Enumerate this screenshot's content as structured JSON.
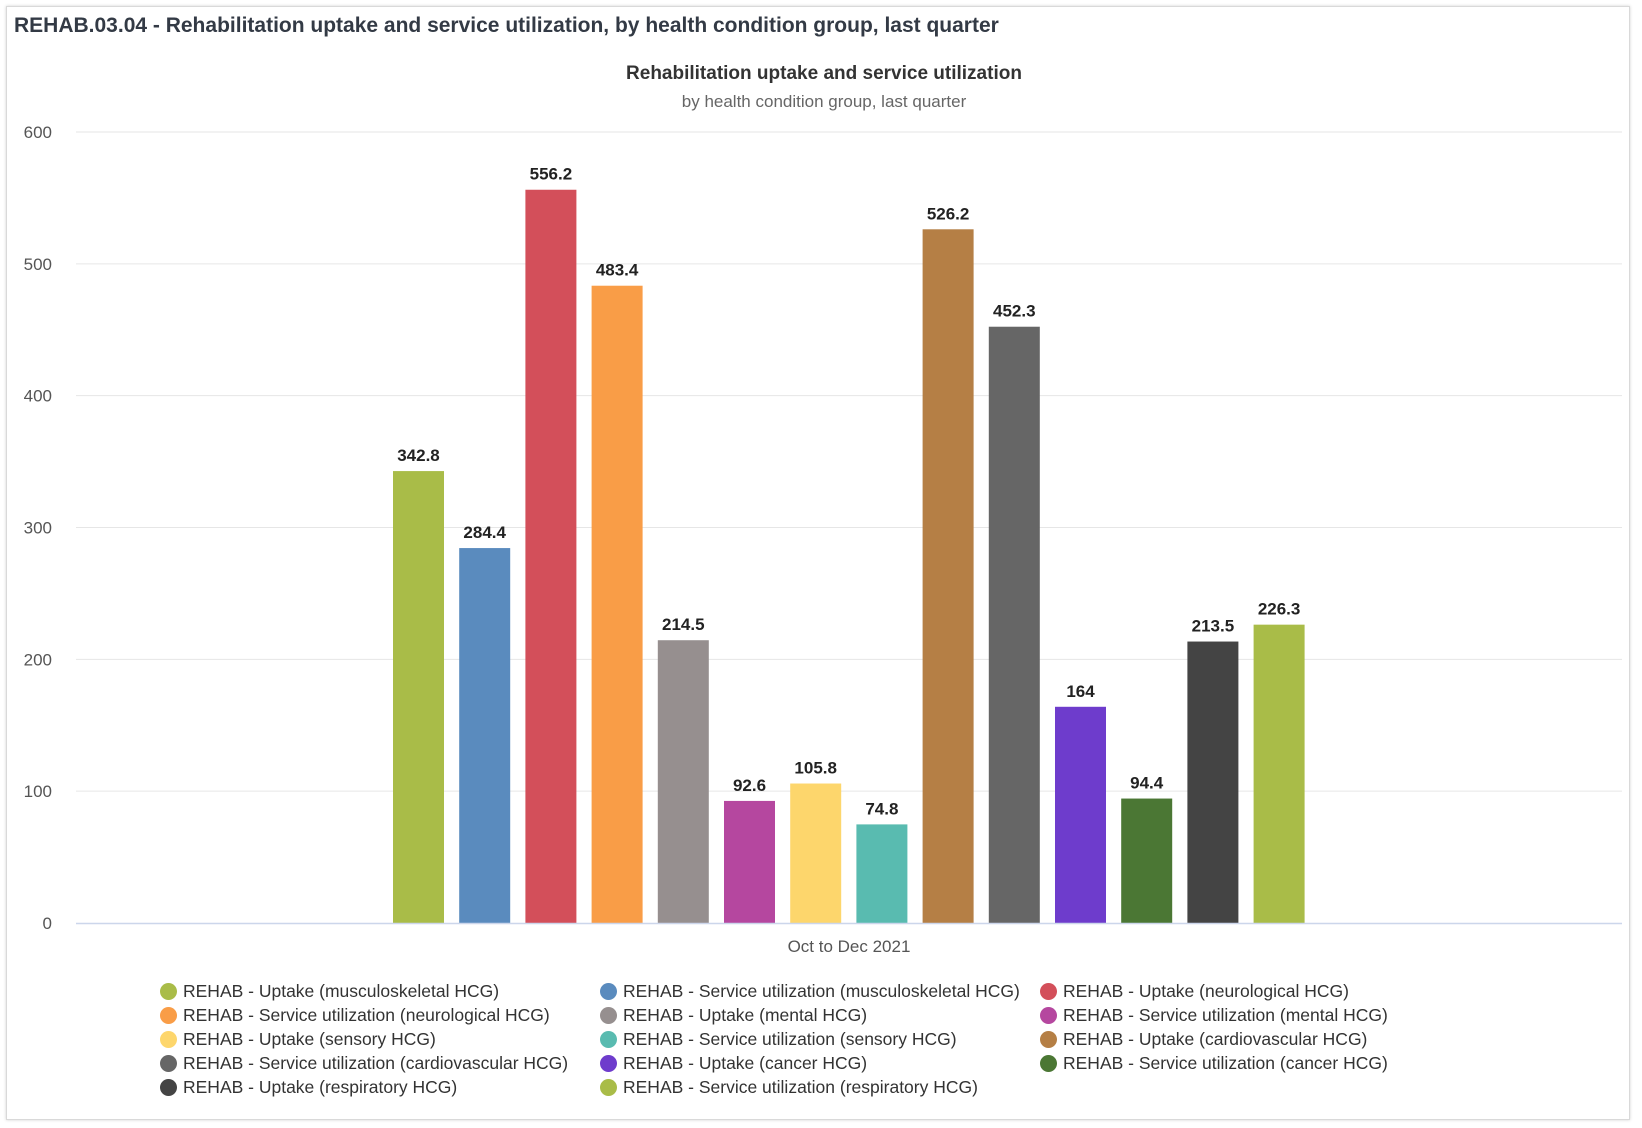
{
  "card_title": "REHAB.03.04 - Rehabilitation uptake and service utilization, by health condition group, last quarter",
  "chart_data": {
    "type": "bar",
    "title": "Rehabilitation uptake and service utilization",
    "subtitle": "by health condition group, last quarter",
    "categories": [
      "Oct to Dec 2021"
    ],
    "xlabel": "",
    "ylabel": "",
    "ylim": [
      0,
      600
    ],
    "yticks": [
      0,
      100,
      200,
      300,
      400,
      500,
      600
    ],
    "grid": true,
    "legend_position": "bottom",
    "series": [
      {
        "name": "REHAB - Uptake (musculoskeletal HCG)",
        "values": [
          342.8
        ],
        "label": "342.8",
        "color": "#a9bc48"
      },
      {
        "name": "REHAB - Service utilization (musculoskeletal HCG)",
        "values": [
          284.4
        ],
        "label": "284.4",
        "color": "#5a8bbe"
      },
      {
        "name": "REHAB - Uptake (neurological HCG)",
        "values": [
          556.2
        ],
        "label": "556.2",
        "color": "#d34f5a"
      },
      {
        "name": "REHAB - Service utilization (neurological HCG)",
        "values": [
          483.4
        ],
        "label": "483.4",
        "color": "#f99d47"
      },
      {
        "name": "REHAB - Uptake (mental HCG)",
        "values": [
          214.5
        ],
        "label": "214.5",
        "color": "#968f8f"
      },
      {
        "name": "REHAB - Service utilization (mental HCG)",
        "values": [
          92.6
        ],
        "label": "92.6",
        "color": "#b5479f"
      },
      {
        "name": "REHAB - Uptake (sensory HCG)",
        "values": [
          105.8
        ],
        "label": "105.8",
        "color": "#fdd66c"
      },
      {
        "name": "REHAB - Service utilization (sensory HCG)",
        "values": [
          74.8
        ],
        "label": "74.8",
        "color": "#59bbb0"
      },
      {
        "name": "REHAB - Uptake (cardiovascular HCG)",
        "values": [
          526.2
        ],
        "label": "526.2",
        "color": "#b57f45"
      },
      {
        "name": "REHAB - Service utilization (cardiovascular HCG)",
        "values": [
          452.3
        ],
        "label": "452.3",
        "color": "#666666"
      },
      {
        "name": "REHAB - Uptake (cancer HCG)",
        "values": [
          164
        ],
        "label": "164",
        "color": "#6e3ccc"
      },
      {
        "name": "REHAB - Service utilization (cancer HCG)",
        "values": [
          94.4
        ],
        "label": "94.4",
        "color": "#4b7734"
      },
      {
        "name": "REHAB - Uptake (respiratory HCG)",
        "values": [
          213.5
        ],
        "label": "213.5",
        "color": "#444444"
      },
      {
        "name": "REHAB - Service utilization (respiratory HCG)",
        "values": [
          226.3
        ],
        "label": "226.3",
        "color": "#a9bc48"
      }
    ]
  }
}
